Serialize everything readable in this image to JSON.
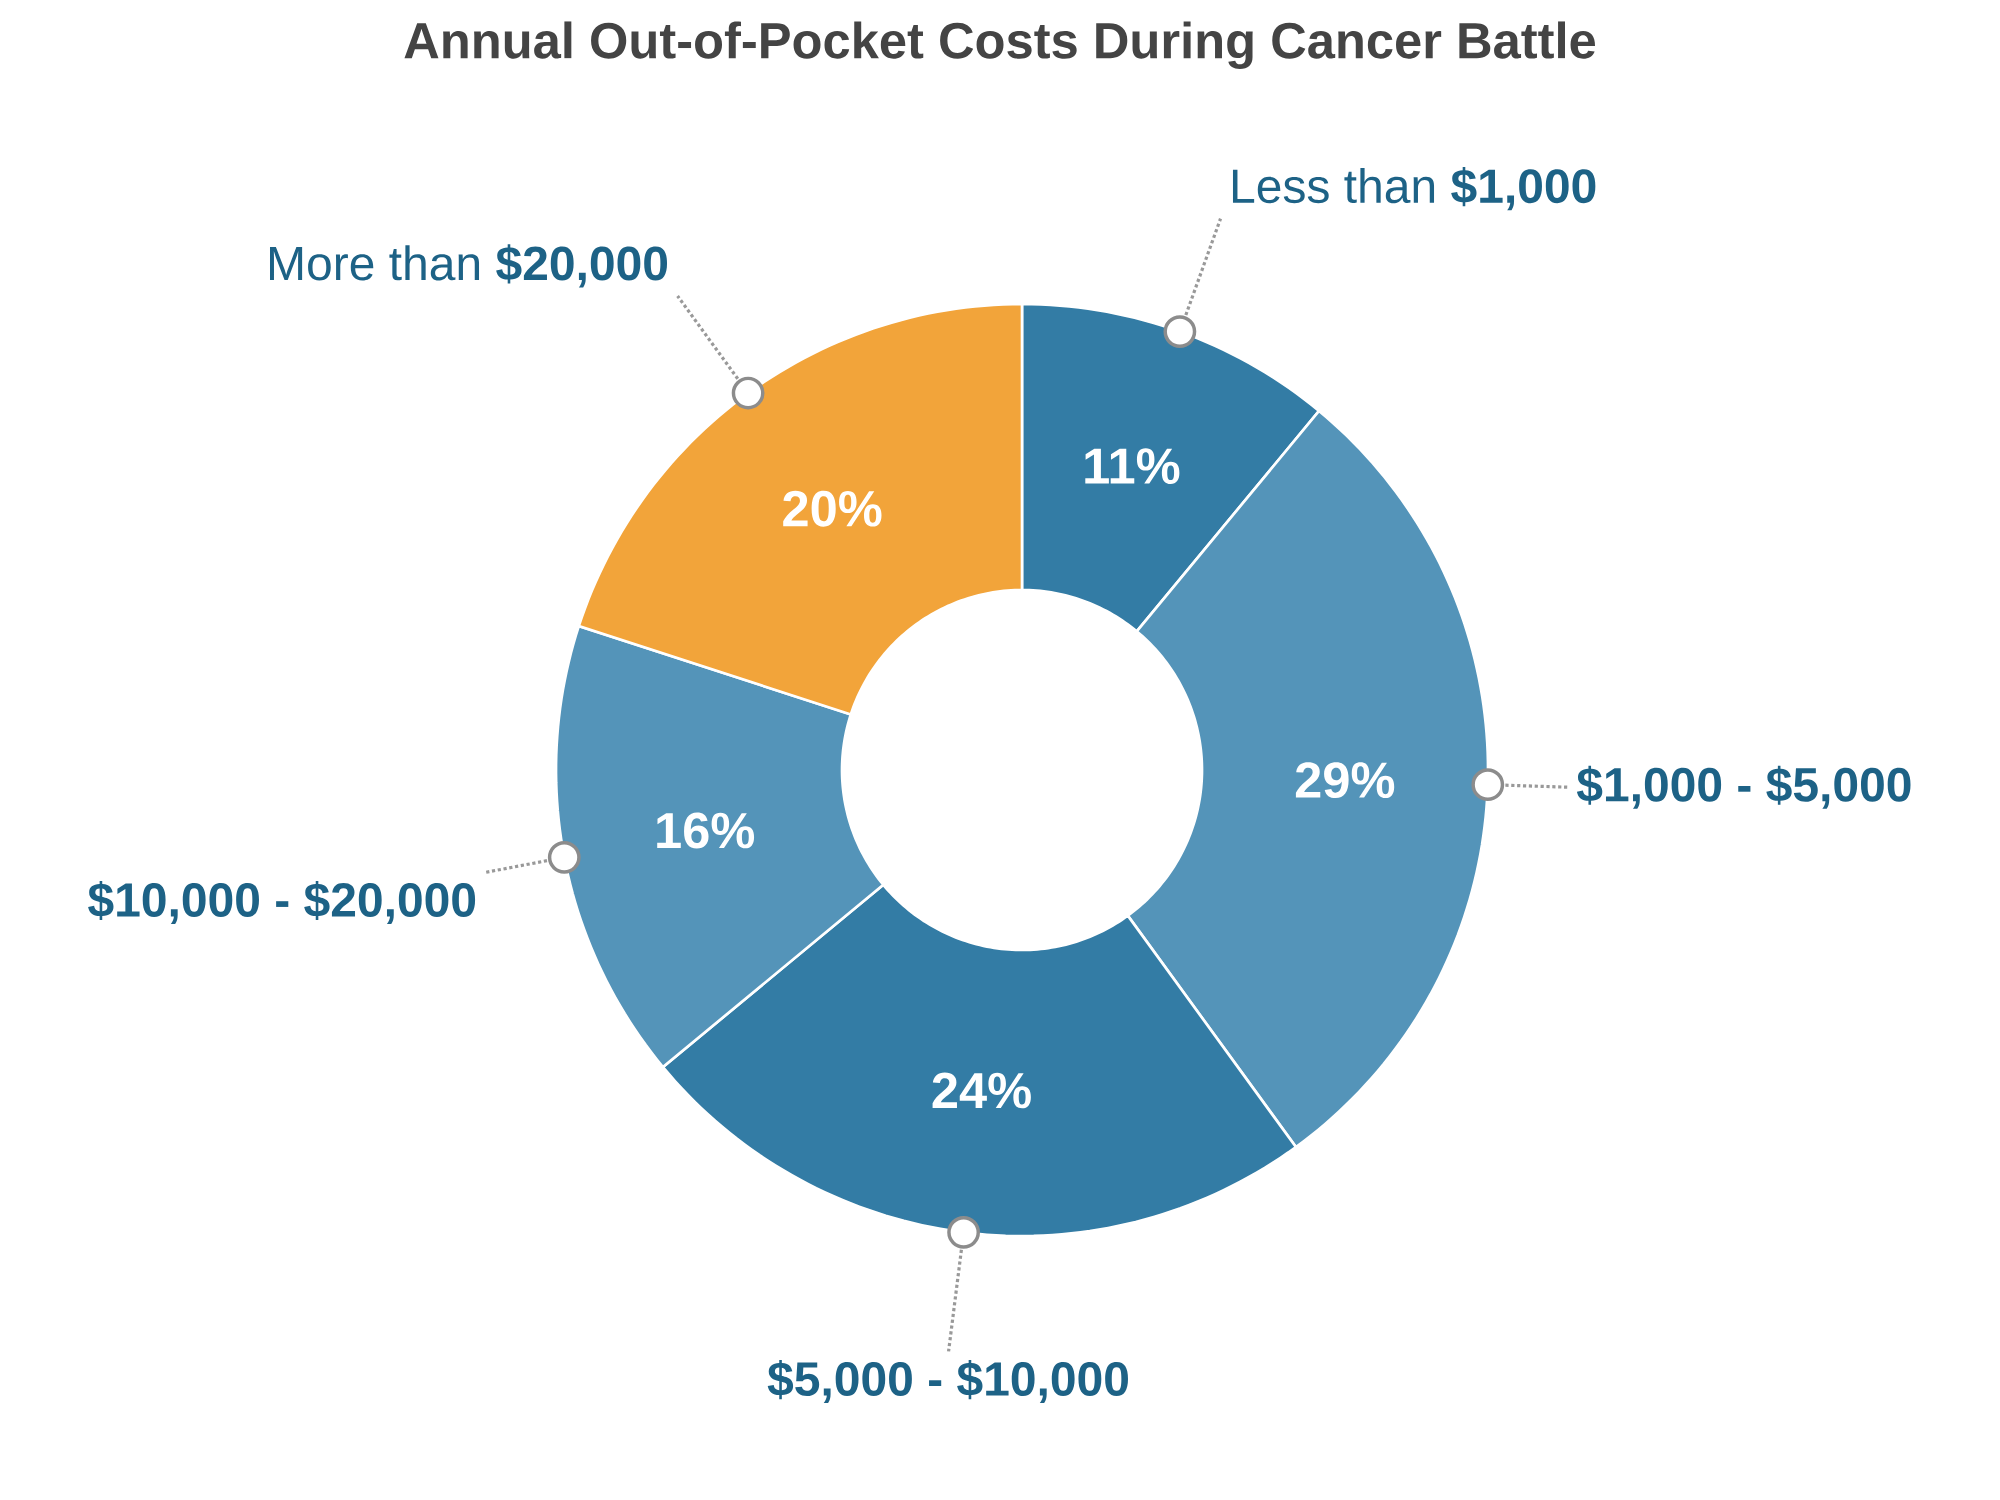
{
  "chart_data": {
    "type": "donut",
    "title": "Annual Out-of-Pocket Costs During Cancer Battle",
    "categories": [
      "Less than **$1,000**",
      "**$1,000 - $5,000**",
      "**$5,000 - $10,000**",
      "**$10,000 - $20,000**",
      "More than **$20,000**"
    ],
    "values": [
      11,
      29,
      24,
      16,
      20
    ],
    "colors": [
      "#337ca5",
      "#5494b9",
      "#337ca5",
      "#5494b9",
      "#f2a43a"
    ],
    "value_labels": [
      "11%",
      "29%",
      "24%",
      "16%",
      "20%"
    ]
  }
}
